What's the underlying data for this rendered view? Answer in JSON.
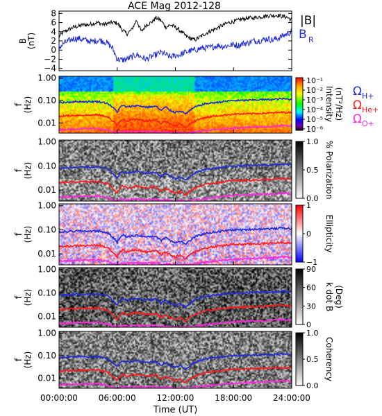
{
  "title": "ACE Mag 2012-128",
  "colors": {
    "black": "#000000",
    "blue": "#1f2bd6",
    "red": "#ff1a1a",
    "magenta": "#ff26e0"
  },
  "chart_data": [
    {
      "type": "line",
      "title": "ACE Mag 2012-128",
      "ylabel": "B",
      "yunit": "(nT)",
      "ylim": [
        -4.5,
        8.5
      ],
      "yticks": [
        -4,
        -2,
        0,
        2,
        4,
        6,
        8
      ],
      "legend": [
        {
          "label": "|B|",
          "color": "#000000"
        },
        {
          "label": "B",
          "sub": "R",
          "color": "#1f2bd6"
        }
      ],
      "series": [
        {
          "name": "|B|",
          "color": "#000000",
          "x": [
            0,
            0.5,
            1,
            1.5,
            2,
            2.5,
            3,
            3.5,
            4,
            4.5,
            5,
            5.5,
            6,
            6.5,
            7,
            7.5,
            8,
            8.5,
            9,
            9.5,
            10,
            10.5,
            11,
            11.5,
            12,
            12.5,
            13,
            13.5,
            14,
            14.5,
            15,
            15.5,
            16,
            16.5,
            17,
            17.5,
            18,
            18.5,
            19,
            19.5,
            20,
            20.5,
            21,
            21.5,
            22,
            22.5,
            23,
            23.5,
            24
          ],
          "values": [
            3,
            4,
            4.5,
            5,
            5.2,
            5.5,
            5.5,
            5.8,
            6,
            5.6,
            5.8,
            6,
            5.9,
            4.5,
            3.5,
            4.5,
            6.5,
            4,
            5.5,
            6,
            7,
            6.5,
            5,
            5.5,
            5,
            4.2,
            3.2,
            2.6,
            2.2,
            2.8,
            3.5,
            4,
            4.5,
            5,
            5.5,
            6,
            6.2,
            6.5,
            6.8,
            7,
            7,
            7.2,
            7.3,
            7.5,
            7.5,
            7.6,
            7.4,
            7.2,
            6.5
          ]
        },
        {
          "name": "BR",
          "color": "#1f2bd6",
          "x": [
            0,
            0.5,
            1,
            1.5,
            2,
            2.5,
            3,
            3.5,
            4,
            4.5,
            5,
            5.5,
            6,
            6.5,
            7,
            7.5,
            8,
            8.5,
            9,
            9.5,
            10,
            10.5,
            11,
            11.5,
            12,
            12.5,
            13,
            13.5,
            14,
            14.5,
            15,
            15.5,
            16,
            16.5,
            17,
            17.5,
            18,
            18.5,
            19,
            19.5,
            20,
            20.5,
            21,
            21.5,
            22,
            22.5,
            23,
            23.5,
            24
          ],
          "values": [
            0.5,
            1.5,
            2,
            2.5,
            2.5,
            2.3,
            2,
            1.8,
            2.2,
            2,
            1.5,
            0.5,
            -2,
            -2.2,
            -2,
            -1.5,
            -1,
            -1.5,
            -2,
            -1.5,
            -1,
            -0.5,
            -1,
            -1.5,
            -1.2,
            -1,
            -0.5,
            -0.2,
            0,
            0.3,
            0.5,
            0.5,
            0.8,
            1,
            0.8,
            1,
            1.2,
            1,
            1.5,
            1.5,
            2,
            2,
            2.2,
            2.5,
            2.2,
            2.5,
            3,
            3.5,
            4
          ]
        }
      ]
    },
    {
      "type": "heatmap",
      "ylabel": "f",
      "yunit": "(Hz)",
      "yscale": "log",
      "ylim": [
        0.0035,
        1.0
      ],
      "yticks": [
        "1.00",
        "0.10",
        "0.01"
      ],
      "colorbar": {
        "label": "Intensity",
        "unit": "(nT²/Hz)",
        "scale": "log",
        "ticks": [
          "10⁻¹",
          "10⁻²",
          "10⁻³",
          "10⁻⁴",
          "10⁻⁵",
          "10⁻⁶"
        ],
        "colormap": "rainbow"
      },
      "legend": [
        {
          "label": "Ω",
          "sub": "H+",
          "color": "#1f2bd6"
        },
        {
          "label": "Ω",
          "sub": "He+",
          "color": "#ff1a1a"
        },
        {
          "label": "Ω",
          "sub": "O+",
          "color": "#ff26e0"
        }
      ]
    },
    {
      "type": "heatmap",
      "ylabel": "f",
      "yunit": "(Hz)",
      "yscale": "log",
      "yticks": [
        "1.00",
        "0.10",
        "0.01"
      ],
      "colorbar": {
        "label": "% Polarization",
        "ticks": [
          "1.0",
          "0.5",
          "0.0"
        ],
        "colormap": "gray"
      }
    },
    {
      "type": "heatmap",
      "ylabel": "f",
      "yunit": "(Hz)",
      "yscale": "log",
      "yticks": [
        "1.00",
        "0.10",
        "0.01"
      ],
      "colorbar": {
        "label": "Ellipticity",
        "ticks": [
          "1",
          "0",
          "−1"
        ],
        "colormap": "blue-white-red"
      }
    },
    {
      "type": "heatmap",
      "ylabel": "f",
      "yunit": "(Hz)",
      "yscale": "log",
      "yticks": [
        "1.00",
        "0.10",
        "0.01"
      ],
      "colorbar": {
        "label": "k dot B",
        "unit": "(Deg)",
        "ticks": [
          "90",
          "60",
          "30",
          "0"
        ],
        "colormap": "gray"
      }
    },
    {
      "type": "heatmap",
      "ylabel": "f",
      "yunit": "(Hz)",
      "yscale": "log",
      "yticks": [
        "1.00",
        "0.10",
        "0.01"
      ],
      "colorbar": {
        "label": "Coherency",
        "ticks": [
          "1.0",
          "0.5",
          "0.0"
        ],
        "colormap": "gray"
      }
    }
  ],
  "overlay_lines": {
    "x": [
      0,
      1,
      2,
      3,
      4,
      5,
      5.5,
      6,
      6.3,
      6.6,
      7,
      8,
      9,
      10,
      10.5,
      11,
      11.5,
      12,
      12.5,
      13,
      13.5,
      14,
      15,
      16,
      17,
      18,
      19,
      20,
      21,
      22,
      23,
      24
    ],
    "H+": [
      0.08,
      0.085,
      0.09,
      0.088,
      0.09,
      0.075,
      0.05,
      0.03,
      0.05,
      0.06,
      0.05,
      0.06,
      0.05,
      0.055,
      0.035,
      0.05,
      0.035,
      0.03,
      0.035,
      0.025,
      0.035,
      0.05,
      0.07,
      0.08,
      0.09,
      0.1,
      0.1,
      0.105,
      0.11,
      0.11,
      0.12,
      0.11
    ],
    "He+": [
      0.02,
      0.021,
      0.022,
      0.022,
      0.023,
      0.019,
      0.012,
      0.0075,
      0.012,
      0.015,
      0.012,
      0.015,
      0.012,
      0.014,
      0.009,
      0.012,
      0.009,
      0.0075,
      0.009,
      0.006,
      0.009,
      0.012,
      0.017,
      0.02,
      0.022,
      0.025,
      0.025,
      0.026,
      0.027,
      0.028,
      0.03,
      0.028
    ],
    "O+": [
      0.005,
      0.0052,
      0.0055,
      0.0055,
      0.0057,
      0.0048,
      0.004,
      0.0035,
      0.004,
      0.0042,
      0.004,
      0.0042,
      0.004,
      0.0042,
      0.0037,
      0.004,
      0.0037,
      0.0035,
      0.0037,
      0.0035,
      0.0037,
      0.004,
      0.0043,
      0.005,
      0.0055,
      0.006,
      0.0062,
      0.0065,
      0.0067,
      0.007,
      0.0075,
      0.007
    ]
  },
  "xaxis": {
    "label": "Time (UT)",
    "ticks": [
      "00:00:00",
      "06:00:00",
      "12:00:00",
      "18:00:00",
      "24:00:00"
    ],
    "xlim": [
      0,
      24
    ]
  }
}
